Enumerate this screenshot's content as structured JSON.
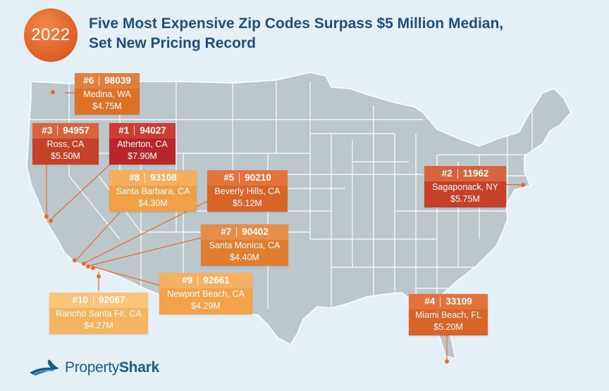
{
  "year": "2022",
  "title_line1": "Five Most Expensive Zip Codes Surpass $5 Million Median,",
  "title_line2": "Set New Pricing Record",
  "brand": {
    "light": "Property",
    "bold": "Shark"
  },
  "colors": {
    "background": "#e4eff6",
    "land": "#bcc7cc",
    "border": "#ffffff",
    "title": "#1f4e79",
    "leader": "#e86a2a",
    "tier_red": "#c6412a",
    "tier_orange": "#e0732a",
    "tier_amber": "#f2a24a",
    "tier_light": "#f7bd6b"
  },
  "zips": [
    {
      "rank": "#6",
      "zip": "98039",
      "city": "Medina, WA",
      "price": "$4.75M",
      "tier": "orange"
    },
    {
      "rank": "#3",
      "zip": "94957",
      "city": "Ross, CA",
      "price": "$5.50M",
      "tier": "red"
    },
    {
      "rank": "#1",
      "zip": "94027",
      "city": "Atherton, CA",
      "price": "$7.90M",
      "tier": "red"
    },
    {
      "rank": "#8",
      "zip": "93108",
      "city": "Santa Barbara, CA",
      "price": "$4.30M",
      "tier": "amber"
    },
    {
      "rank": "#5",
      "zip": "90210",
      "city": "Beverly Hills, CA",
      "price": "$5.12M",
      "tier": "orange"
    },
    {
      "rank": "#7",
      "zip": "90402",
      "city": "Santa Monica, CA",
      "price": "$4.40M",
      "tier": "orange"
    },
    {
      "rank": "#9",
      "zip": "92661",
      "city": "Newport Beach, CA",
      "price": "$4.29M",
      "tier": "light"
    },
    {
      "rank": "#10",
      "zip": "92067",
      "city": "Rancho Santa Fe, CA",
      "price": "$4.27M",
      "tier": "light"
    },
    {
      "rank": "#2",
      "zip": "11962",
      "city": "Sagaponack, NY",
      "price": "$5.75M",
      "tier": "red"
    },
    {
      "rank": "#4",
      "zip": "33109",
      "city": "Miami Beach, FL",
      "price": "$5.20M",
      "tier": "orange"
    }
  ]
}
